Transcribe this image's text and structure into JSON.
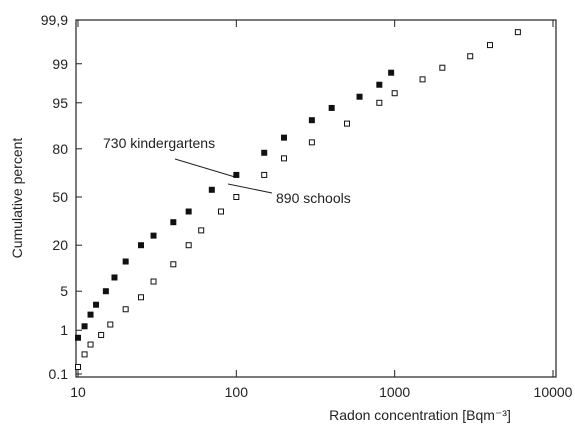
{
  "chart_data": {
    "type": "probability-scatter",
    "x_label": "Radon concentration [Bqm⁻³]",
    "y_label": "Cumulative percent",
    "x_scale": "log",
    "y_scale": "probability",
    "xlim": [
      10,
      10000
    ],
    "xticks": [
      10,
      100,
      1000,
      10000
    ],
    "ylim": [
      0.1,
      99.9
    ],
    "yticks": [
      0.1,
      1,
      5,
      20,
      50,
      80,
      95,
      99,
      {
        "value": 99.9,
        "label": "99,9"
      }
    ],
    "grid": false,
    "series": [
      {
        "name": "730 kindergartens",
        "marker": "filled",
        "color": "#111111",
        "x": [
          10,
          11,
          12,
          13,
          15,
          17,
          20,
          25,
          30,
          40,
          50,
          70,
          100,
          150,
          200,
          300,
          400,
          600,
          800,
          950
        ],
        "values": [
          0.7,
          1.2,
          2,
          3,
          5,
          8,
          13,
          20,
          25,
          33,
          40,
          55,
          65,
          78,
          85,
          91,
          94,
          96,
          97.5,
          98.5
        ]
      },
      {
        "name": "890 schools",
        "marker": "open",
        "color": "#111111",
        "x": [
          10,
          11,
          12,
          14,
          16,
          20,
          25,
          30,
          40,
          50,
          60,
          80,
          100,
          150,
          200,
          300,
          500,
          800,
          1000,
          1500,
          2000,
          3000,
          4000,
          6000
        ],
        "values": [
          0.15,
          0.3,
          0.5,
          0.8,
          1.3,
          2.5,
          4,
          7,
          12,
          20,
          28,
          40,
          50,
          65,
          75,
          83,
          90,
          95,
          96.5,
          98,
          98.8,
          99.3,
          99.6,
          99.8
        ]
      }
    ]
  }
}
